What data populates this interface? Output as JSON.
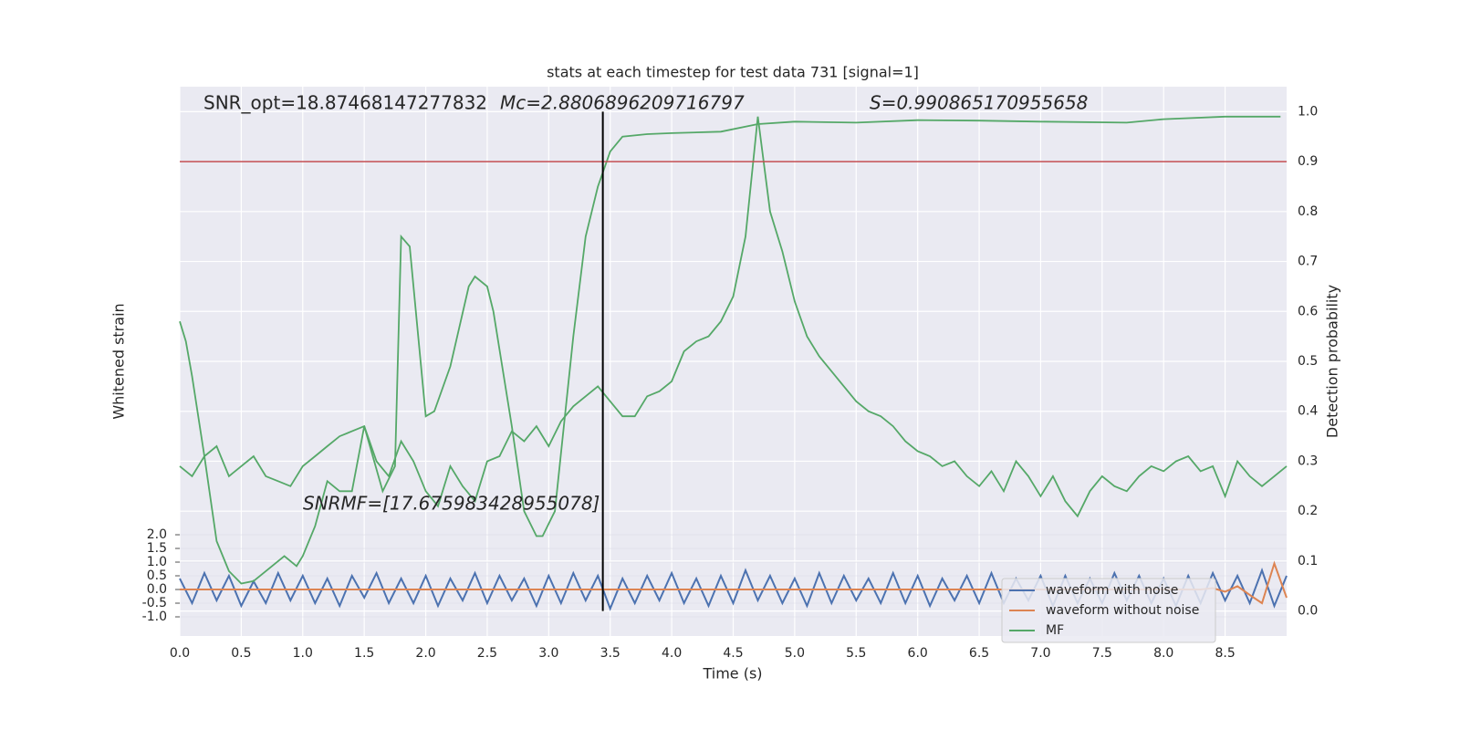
{
  "chart_data": {
    "type": "line",
    "title": "stats at each timestep for test data 731 [signal=1]",
    "xlabel": "Time (s)",
    "ylabel": "Whitened strain",
    "y2label": "Detection probability",
    "annotations": [
      "SNR_opt=18.87468147277832",
      "Mc=2.8806896209716797",
      "S=0.990865170955658",
      "SNRMF=[17.675983428955078]"
    ],
    "xlim": [
      0,
      9.0
    ],
    "xticks": [
      {
        "value": 0,
        "label": "0.0"
      },
      0.5,
      {
        "value": 1,
        "label": "1.0"
      },
      1.5,
      {
        "value": 2,
        "label": "2.0"
      },
      2.5,
      {
        "value": 3,
        "label": "3.0"
      },
      3.5,
      {
        "value": 4,
        "label": "4.0"
      },
      4.5,
      {
        "value": 5,
        "label": "5.0"
      },
      5.5,
      {
        "value": 6,
        "label": "6.0"
      },
      6.5,
      {
        "value": 7,
        "label": "7.0"
      },
      7.5,
      {
        "value": 8,
        "label": "8.0"
      },
      8.5
    ],
    "ylim": [
      -1.7,
      18.37
    ],
    "yticks": [
      {
        "value": -1,
        "label": "-1.0"
      },
      -0.5,
      {
        "value": 0,
        "label": "0.0"
      },
      0.5,
      {
        "value": 1,
        "label": "1.0"
      },
      1.5,
      {
        "value": 2,
        "label": "2.0"
      }
    ],
    "y2lim": [
      -0.05,
      1.05
    ],
    "y2ticks": [
      {
        "value": 0,
        "label": "0.0"
      },
      0.1,
      0.2,
      0.3,
      0.4,
      0.5,
      0.6,
      0.7,
      0.8,
      0.9,
      {
        "value": 1,
        "label": "1.0"
      }
    ],
    "grid": true,
    "legend": "lower right",
    "vline_x": 3.44,
    "hline_y2": 0.9,
    "x": [
      0.0,
      0.1,
      0.2,
      0.3,
      0.4,
      0.5,
      0.6,
      0.7,
      0.8,
      0.9,
      1.0,
      1.1,
      1.2,
      1.3,
      1.4,
      1.5,
      1.6,
      1.7,
      1.8,
      1.9,
      2.0,
      2.1,
      2.2,
      2.3,
      2.4,
      2.5,
      2.6,
      2.7,
      2.8,
      2.9,
      3.0,
      3.1,
      3.2,
      3.3,
      3.4,
      3.5,
      3.6,
      3.7,
      3.8,
      3.9,
      4.0,
      4.1,
      4.2,
      4.3,
      4.4,
      4.5,
      4.6,
      4.7,
      4.8,
      4.9,
      5.0,
      5.1,
      5.2,
      5.3,
      5.4,
      5.5,
      5.6,
      5.7,
      5.8,
      5.9,
      6.0,
      6.1,
      6.2,
      6.3,
      6.4,
      6.5,
      6.6,
      6.7,
      6.8,
      6.9,
      7.0,
      7.1,
      7.2,
      7.3,
      7.4,
      7.5,
      7.6,
      7.7,
      7.8,
      7.9,
      8.0,
      8.1,
      8.2,
      8.3,
      8.4,
      8.5,
      8.6,
      8.7,
      8.8,
      8.9,
      9.0
    ],
    "series": [
      {
        "name": "waveform with noise",
        "color": "#4c72b0",
        "axis": "y",
        "values": [
          0.4,
          -0.5,
          0.6,
          -0.4,
          0.5,
          -0.6,
          0.3,
          -0.5,
          0.6,
          -0.4,
          0.5,
          -0.5,
          0.4,
          -0.6,
          0.5,
          -0.3,
          0.6,
          -0.5,
          0.4,
          -0.5,
          0.5,
          -0.6,
          0.4,
          -0.4,
          0.6,
          -0.5,
          0.5,
          -0.4,
          0.4,
          -0.6,
          0.5,
          -0.5,
          0.6,
          -0.4,
          0.5,
          -0.7,
          0.4,
          -0.5,
          0.5,
          -0.4,
          0.6,
          -0.5,
          0.4,
          -0.6,
          0.5,
          -0.5,
          0.7,
          -0.4,
          0.5,
          -0.5,
          0.4,
          -0.6,
          0.6,
          -0.5,
          0.5,
          -0.4,
          0.4,
          -0.5,
          0.6,
          -0.5,
          0.5,
          -0.6,
          0.4,
          -0.4,
          0.5,
          -0.5,
          0.6,
          -0.5,
          0.4,
          -0.4,
          0.5,
          -0.6,
          0.5,
          -0.5,
          0.4,
          -0.5,
          0.6,
          -0.4,
          0.5,
          -0.5,
          0.4,
          -0.6,
          0.5,
          -0.5,
          0.6,
          -0.4,
          0.5,
          -0.5,
          0.7,
          -0.6,
          0.5
        ]
      },
      {
        "name": "waveform without noise",
        "color": "#dd8452",
        "axis": "y",
        "values": [
          0,
          0,
          0,
          0,
          0,
          0,
          0,
          0,
          0,
          0,
          0,
          0,
          0,
          0,
          0,
          0,
          0,
          0,
          0,
          0,
          0,
          0,
          0,
          0,
          0,
          0,
          0,
          0,
          0,
          0,
          0,
          0,
          0,
          0,
          0,
          0,
          0,
          0,
          0,
          0,
          0,
          0,
          0,
          0,
          0,
          0,
          0,
          0,
          0,
          0,
          0,
          0,
          0,
          0,
          0,
          0,
          0,
          0,
          0,
          0,
          0,
          0,
          0,
          0,
          0,
          0,
          0,
          0,
          0,
          0,
          0,
          0,
          0,
          0,
          0,
          0,
          0,
          0,
          0,
          0,
          0,
          0,
          0,
          0,
          0.05,
          -0.08,
          0.12,
          -0.2,
          -0.5,
          0.95,
          -0.3
        ]
      },
      {
        "name": "MF",
        "color": "#55a868",
        "axis": "y2",
        "values": [
          0.29,
          0.27,
          0.31,
          0.33,
          0.27,
          0.29,
          0.31,
          0.27,
          0.26,
          0.25,
          0.29,
          0.31,
          0.33,
          0.35,
          0.36,
          0.37,
          0.3,
          0.27,
          0.34,
          0.3,
          0.24,
          0.21,
          0.29,
          0.25,
          0.22,
          0.3,
          0.31,
          0.36,
          0.34,
          0.37,
          0.33,
          0.38,
          0.41,
          0.43,
          0.45,
          0.42,
          0.39,
          0.39,
          0.43,
          0.44,
          0.46,
          0.52,
          0.54,
          0.55,
          0.58,
          0.63,
          0.75,
          0.99,
          0.8,
          0.72,
          0.62,
          0.55,
          0.51,
          0.48,
          0.45,
          0.42,
          0.4,
          0.39,
          0.37,
          0.34,
          0.32,
          0.31,
          0.29,
          0.3,
          0.27,
          0.25,
          0.28,
          0.24,
          0.3,
          0.27,
          0.23,
          0.27,
          0.22,
          0.19,
          0.24,
          0.27,
          0.25,
          0.24,
          0.27,
          0.29,
          0.28,
          0.3,
          0.31,
          0.28,
          0.29,
          0.23,
          0.3,
          0.27,
          0.25,
          0.27,
          0.29
        ]
      },
      {
        "color": "#55a868",
        "axis": "y2",
        "x": [
          0,
          0.05,
          0.1,
          0.2,
          0.3,
          0.4,
          0.5,
          0.6,
          0.7,
          0.8,
          0.85,
          0.95,
          1.0,
          1.1,
          1.2,
          1.3,
          1.4,
          1.5,
          1.65,
          1.75,
          1.8,
          1.87,
          2.0,
          2.07,
          2.2,
          2.35,
          2.4,
          2.5,
          2.55,
          2.7,
          2.8,
          2.9,
          2.95,
          3.05,
          3.2,
          3.3,
          3.4,
          3.5,
          3.6,
          3.8,
          4.0,
          4.4,
          4.7,
          5.0,
          5.5,
          6.0,
          6.5,
          7.0,
          7.7,
          8.0,
          8.5,
          8.95
        ],
        "values": [
          0.58,
          0.54,
          0.47,
          0.31,
          0.14,
          0.08,
          0.055,
          0.06,
          0.08,
          0.1,
          0.11,
          0.09,
          0.11,
          0.17,
          0.26,
          0.24,
          0.24,
          0.37,
          0.24,
          0.29,
          0.75,
          0.73,
          0.39,
          0.4,
          0.49,
          0.65,
          0.67,
          0.65,
          0.6,
          0.37,
          0.2,
          0.15,
          0.15,
          0.2,
          0.55,
          0.75,
          0.85,
          0.92,
          0.95,
          0.955,
          0.957,
          0.96,
          0.975,
          0.98,
          0.978,
          0.983,
          0.982,
          0.98,
          0.978,
          0.985,
          0.99,
          0.99
        ]
      }
    ]
  }
}
